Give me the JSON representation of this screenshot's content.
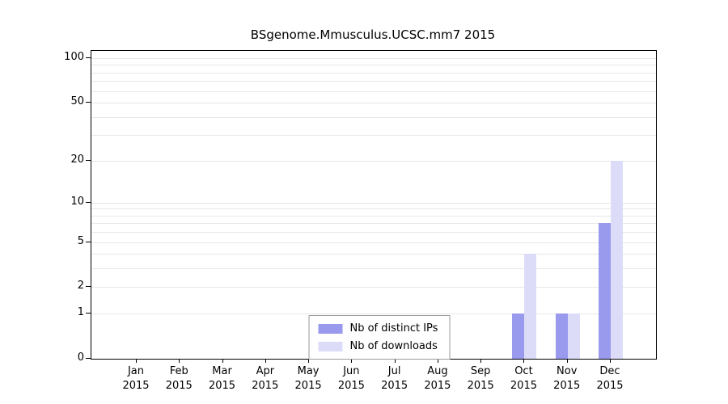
{
  "title": "BSgenome.Mmusculus.UCSC.mm7 2015",
  "legend": {
    "items": [
      {
        "label": "Nb of distinct IPs",
        "color": "#9999ee"
      },
      {
        "label": "Nb of downloads",
        "color": "#dcdcf8"
      }
    ]
  },
  "chart_data": {
    "type": "bar",
    "title": "BSgenome.Mmusculus.UCSC.mm7 2015",
    "categories": [
      "Jan",
      "Feb",
      "Mar",
      "Apr",
      "May",
      "Jun",
      "Jul",
      "Aug",
      "Sep",
      "Oct",
      "Nov",
      "Dec"
    ],
    "year": "2015",
    "series": [
      {
        "name": "Nb of distinct IPs",
        "color": "#9999ee",
        "values": [
          0,
          0,
          0,
          0,
          0,
          0,
          0,
          0,
          0,
          1,
          1,
          7
        ]
      },
      {
        "name": "Nb of downloads",
        "color": "#dcdcf8",
        "values": [
          0,
          0,
          0,
          0,
          0,
          0,
          0,
          0,
          0,
          4,
          1,
          20
        ]
      }
    ],
    "y_ticks": [
      0,
      1,
      2,
      5,
      10,
      20,
      50,
      100
    ],
    "y_scale": "log10(1+y)",
    "ylim": [
      0,
      112
    ],
    "grid": true,
    "legend_position": "bottom-center-inside"
  }
}
